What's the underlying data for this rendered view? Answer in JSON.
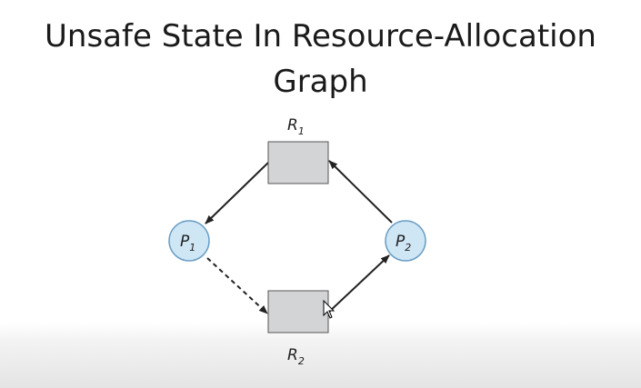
{
  "title": {
    "line1": "Unsafe State In Resource-Allocation",
    "line2": "Graph"
  },
  "graph": {
    "resources": [
      {
        "id": "R1",
        "label": "R",
        "sub": "1"
      },
      {
        "id": "R2",
        "label": "R",
        "sub": "2"
      }
    ],
    "processes": [
      {
        "id": "P1",
        "label": "P",
        "sub": "1"
      },
      {
        "id": "P2",
        "label": "P",
        "sub": "2"
      }
    ],
    "edges": [
      {
        "from": "R1",
        "to": "P1",
        "kind": "assignment",
        "style": "solid"
      },
      {
        "from": "P1",
        "to": "R2",
        "kind": "claim",
        "style": "dashed"
      },
      {
        "from": "R2",
        "to": "P2",
        "kind": "assignment",
        "style": "solid"
      },
      {
        "from": "P2",
        "to": "R1",
        "kind": "request",
        "style": "solid"
      }
    ]
  },
  "colors": {
    "resource_fill": "#d3d4d6",
    "process_fill": "#cfe6f5",
    "process_stroke": "#6a9ec4",
    "edge": "#222222"
  }
}
